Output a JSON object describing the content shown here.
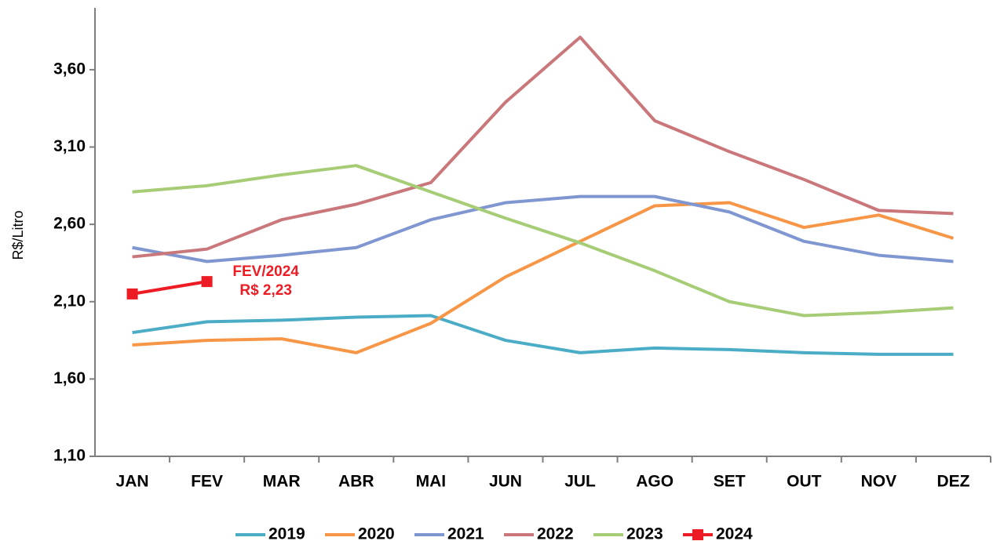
{
  "chart_data": {
    "type": "line",
    "y_label": "R$/Litro",
    "categories": [
      "JAN",
      "FEV",
      "MAR",
      "ABR",
      "MAI",
      "JUN",
      "JUL",
      "AGO",
      "SET",
      "OUT",
      "NOV",
      "DEZ"
    ],
    "series": [
      {
        "name": "2019",
        "color": "#4bacc6",
        "values": [
          1.9,
          1.97,
          1.98,
          2.0,
          2.01,
          1.85,
          1.77,
          1.8,
          1.79,
          1.77,
          1.76,
          1.76
        ]
      },
      {
        "name": "2020",
        "color": "#f79646",
        "values": [
          1.82,
          1.85,
          1.86,
          1.77,
          1.96,
          2.26,
          2.49,
          2.72,
          2.74,
          2.58,
          2.66,
          2.51
        ]
      },
      {
        "name": "2021",
        "color": "#7f96d0",
        "values": [
          2.45,
          2.36,
          2.4,
          2.45,
          2.63,
          2.74,
          2.78,
          2.78,
          2.68,
          2.49,
          2.4,
          2.36
        ]
      },
      {
        "name": "2022",
        "color": "#c9777a",
        "values": [
          2.39,
          2.44,
          2.63,
          2.73,
          2.87,
          3.39,
          3.81,
          3.27,
          3.07,
          2.89,
          2.69,
          2.67
        ]
      },
      {
        "name": "2023",
        "color": "#a6cc76",
        "values": [
          2.81,
          2.85,
          2.92,
          2.98,
          2.81,
          2.64,
          2.48,
          2.3,
          2.1,
          2.01,
          2.03,
          2.06
        ]
      },
      {
        "name": "2024",
        "color": "#ed1c24",
        "marker": "square",
        "values": [
          2.15,
          2.23,
          null,
          null,
          null,
          null,
          null,
          null,
          null,
          null,
          null,
          null
        ]
      }
    ],
    "annotations": [
      "FEV/2024",
      "R$ 2,23"
    ],
    "annotation_color": "#ed1c24",
    "ylim": [
      1.1,
      4.0
    ],
    "yticks": [
      {
        "value": 1.1,
        "label": "1,10"
      },
      {
        "value": 1.6,
        "label": "1,60"
      },
      {
        "value": 2.1,
        "label": "2,10"
      },
      {
        "value": 2.6,
        "label": "2,60"
      },
      {
        "value": 3.1,
        "label": "3,10"
      },
      {
        "value": 3.6,
        "label": "3,60"
      }
    ],
    "grid": false,
    "legend": "bottom"
  }
}
